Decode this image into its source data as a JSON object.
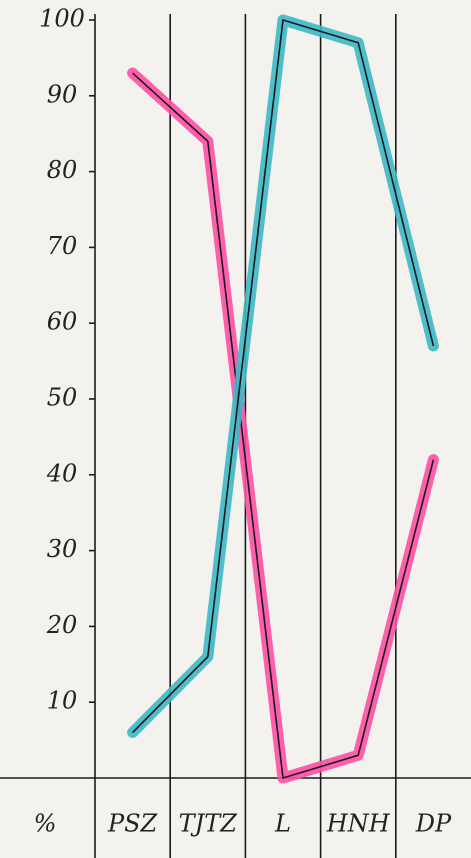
{
  "chart_data": {
    "type": "line",
    "y_label": "%",
    "categories": [
      "PSZ",
      "TJTZ",
      "L",
      "HNH",
      "DP"
    ],
    "series": [
      {
        "color": "#ff4fa3",
        "values": [
          93,
          84,
          0,
          3,
          42
        ]
      },
      {
        "color": "#3db8c6",
        "values": [
          6,
          16,
          100,
          97,
          57
        ]
      }
    ],
    "ylim": [
      0,
      100
    ],
    "yticks": [
      10,
      20,
      30,
      40,
      50,
      60,
      70,
      80,
      90,
      100
    ]
  }
}
